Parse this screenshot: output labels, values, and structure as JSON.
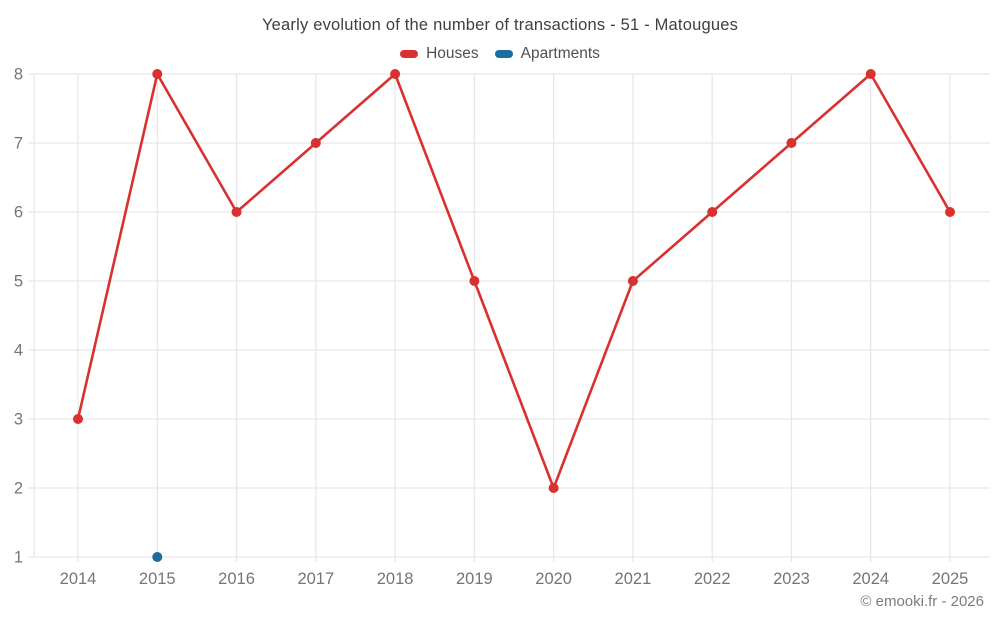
{
  "chart_data": {
    "type": "line",
    "title": "Yearly evolution of the number of transactions - 51 - Matougues",
    "x": [
      "2014",
      "2015",
      "2016",
      "2017",
      "2018",
      "2019",
      "2020",
      "2021",
      "2022",
      "2023",
      "2024",
      "2025"
    ],
    "series": [
      {
        "name": "Houses",
        "color": "#d93030",
        "values": [
          3,
          8,
          6,
          7,
          8,
          5,
          2,
          5,
          6,
          7,
          8,
          6
        ]
      },
      {
        "name": "Apartments",
        "color": "#1a6d9e",
        "values": [
          null,
          1,
          null,
          null,
          null,
          null,
          null,
          null,
          null,
          null,
          null,
          null
        ]
      }
    ],
    "ylim": [
      1,
      8
    ],
    "yticks": [
      1,
      2,
      3,
      4,
      5,
      6,
      7,
      8
    ],
    "grid": true,
    "legend_position": "top"
  },
  "footer": {
    "text": "© emooki.fr - 2026"
  },
  "colors": {
    "grid": "#e7e7e7",
    "axis_text": "#757575",
    "title_text": "#3f3f3f",
    "background": "#ffffff"
  }
}
